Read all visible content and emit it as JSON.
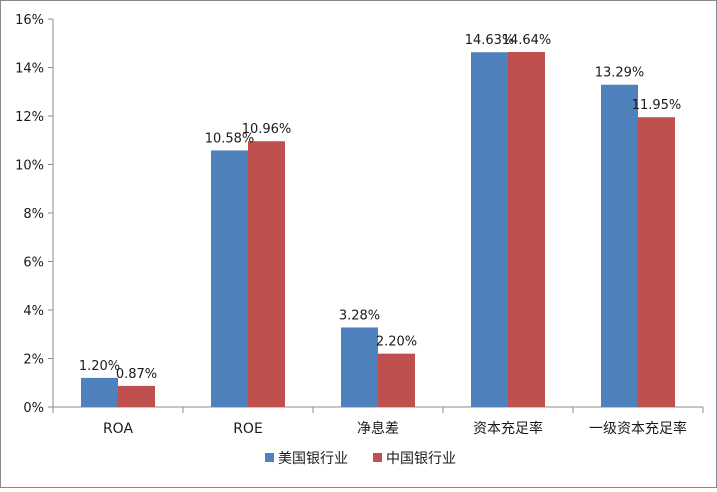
{
  "chart_data": {
    "type": "bar",
    "categories": [
      "ROA",
      "ROE",
      "净息差",
      "资本充足率",
      "一级资本充足率"
    ],
    "series": [
      {
        "name": "美国银行业",
        "color": "#4f81bd",
        "values": [
          1.2,
          10.58,
          3.28,
          14.63,
          13.29
        ],
        "labels": [
          "1.20%",
          "10.58%",
          "3.28%",
          "14.63%",
          "13.29%"
        ]
      },
      {
        "name": "中国银行业",
        "color": "#c0504d",
        "values": [
          0.87,
          10.96,
          2.2,
          14.64,
          11.95
        ],
        "labels": [
          "0.87%",
          "10.96%",
          "2.20%",
          "14.64%",
          "11.95%"
        ]
      }
    ],
    "ylim": [
      0,
      16
    ],
    "yticks": [
      "0%",
      "2%",
      "4%",
      "6%",
      "8%",
      "10%",
      "12%",
      "14%",
      "16%"
    ],
    "grid": false,
    "legend_position": "bottom"
  }
}
